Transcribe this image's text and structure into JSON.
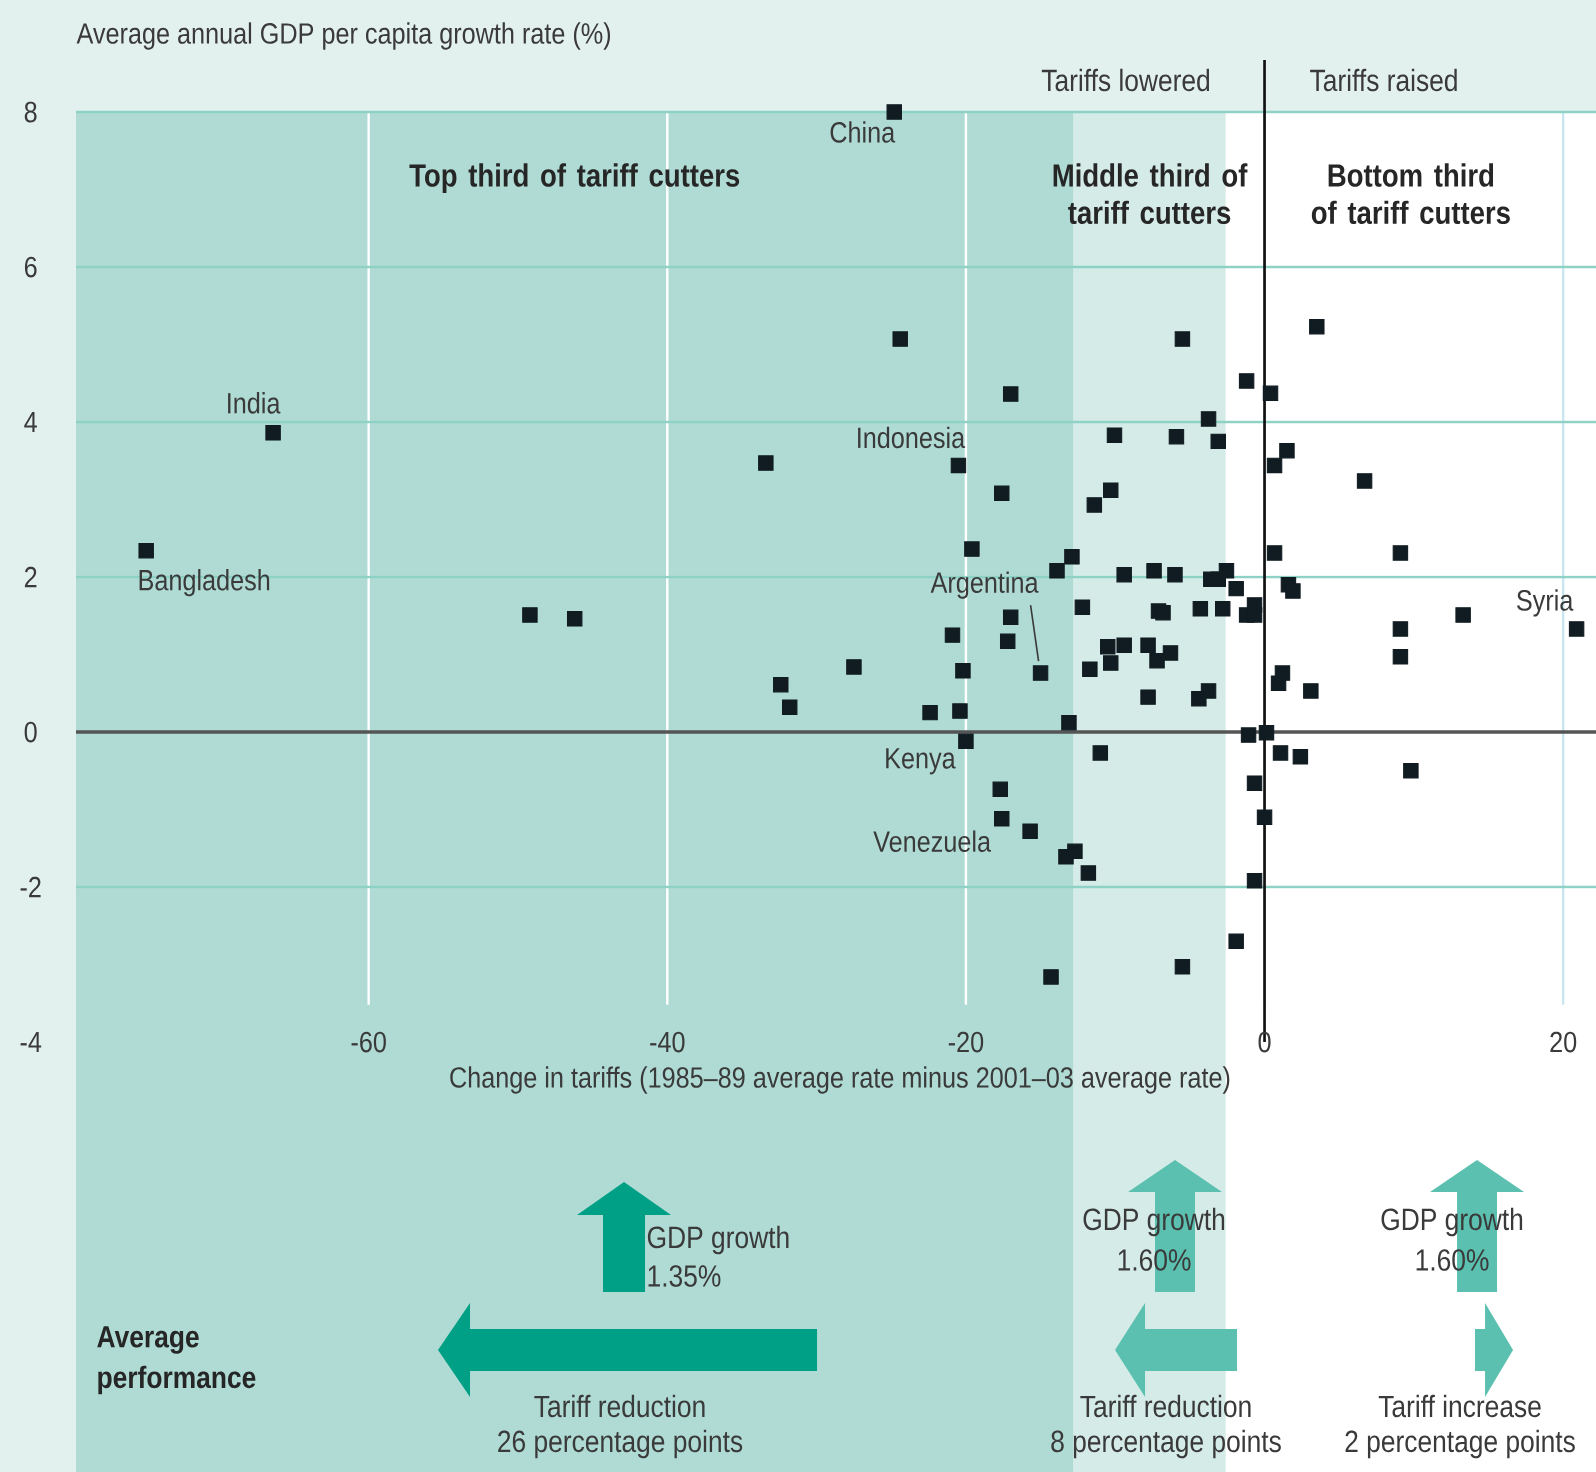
{
  "chart_data": {
    "type": "scatter",
    "xlabel": "Change in tariffs (1985–89 average rate minus 2001–03 average rate)",
    "ylabel": "Average annual GDP per capita growth rate (%)",
    "xlim": [
      -79.6,
      22.2
    ],
    "ylim": [
      -4,
      8
    ],
    "xticks": [
      -60,
      -40,
      -20,
      0,
      20
    ],
    "yticks": [
      -4,
      -2,
      0,
      2,
      4,
      6,
      8
    ],
    "grid": true,
    "marker": "square",
    "color": "#111c22",
    "x": [
      -66.4,
      -74.9,
      -33.4,
      -49.2,
      -46.2,
      -32.4,
      -31.8,
      -24.8,
      -24.4,
      -5.5,
      3.5,
      -17.0,
      -1.2,
      0.4,
      -3.75,
      -10.05,
      -5.9,
      -3.1,
      1.5,
      0.67,
      -20.5,
      6.7,
      -17.6,
      -10.3,
      -11.4,
      -19.6,
      0.67,
      9.1,
      -12.9,
      -13.9,
      -9.4,
      -7.4,
      -6.0,
      -3.6,
      -3.1,
      -2.55,
      -1.9,
      1.6,
      1.9,
      -17.0,
      -12.2,
      -7.1,
      -6.8,
      -4.3,
      -2.8,
      -1.2,
      -0.67,
      -0.67,
      13.3,
      20.9,
      9.1,
      9.1,
      -20.9,
      -17.2,
      -27.5,
      -20.2,
      -15.0,
      -11.7,
      -10.5,
      -10.3,
      -9.4,
      -7.8,
      -7.2,
      -6.3,
      1.2,
      0.94,
      3.1,
      -7.8,
      -4.4,
      -3.75,
      -22.4,
      -20.4,
      -13.1,
      -20.0,
      -1.07,
      0.13,
      -11.0,
      1.07,
      2.4,
      9.8,
      -0.67,
      -17.7,
      0.0,
      -17.6,
      -15.7,
      -12.7,
      -13.3,
      -11.8,
      -0.67,
      -1.9,
      -5.5,
      -14.3
    ],
    "values": [
      3.86,
      2.34,
      3.47,
      1.51,
      1.46,
      0.61,
      0.32,
      8.0,
      5.07,
      5.07,
      5.23,
      4.36,
      4.53,
      4.37,
      4.04,
      3.83,
      3.81,
      3.75,
      3.63,
      3.44,
      3.44,
      3.24,
      3.08,
      3.12,
      2.93,
      2.36,
      2.31,
      2.31,
      2.26,
      2.08,
      2.03,
      2.08,
      2.03,
      1.97,
      1.97,
      2.08,
      1.85,
      1.9,
      1.82,
      1.48,
      1.61,
      1.56,
      1.54,
      1.59,
      1.59,
      1.51,
      1.64,
      1.51,
      1.51,
      1.33,
      1.33,
      0.97,
      1.25,
      1.17,
      0.84,
      0.79,
      0.76,
      0.81,
      1.1,
      0.89,
      1.12,
      1.12,
      0.92,
      1.02,
      0.76,
      0.63,
      0.53,
      0.45,
      0.43,
      0.53,
      0.25,
      0.27,
      0.12,
      -0.12,
      -0.04,
      -0.01,
      -0.27,
      -0.27,
      -0.32,
      -0.5,
      -0.66,
      -0.74,
      -1.1,
      -1.12,
      -1.28,
      -1.54,
      -1.61,
      -1.82,
      -1.92,
      -2.7,
      -3.03,
      -3.16
    ],
    "bands": [
      {
        "axis": "x",
        "from": -79.6,
        "to": -12.8,
        "label": "Top third of tariff cutters",
        "color": "#afdbd4"
      },
      {
        "axis": "x",
        "from": -12.8,
        "to": -2.6,
        "label": "Middle third of tariff cutters",
        "color": "#d5ebe7"
      },
      {
        "axis": "x",
        "from": -2.6,
        "to": 22.2,
        "label": "Bottom third of tariff cutters",
        "color": "#ffffff"
      }
    ],
    "ref_lines": [
      {
        "axis": "x",
        "value": 0,
        "color": "#111111"
      },
      {
        "axis": "y",
        "value": 0,
        "color": "#555555"
      }
    ],
    "annotations": [
      {
        "text": "India",
        "x": -66.4,
        "y": 3.86
      },
      {
        "text": "Bangladesh",
        "x": -74.9,
        "y": 2.34
      },
      {
        "text": "China",
        "x": -24.8,
        "y": 8.0
      },
      {
        "text": "Indonesia",
        "x": -20.5,
        "y": 3.44
      },
      {
        "text": "Argentina",
        "x": -15.0,
        "y": 0.76
      },
      {
        "text": "Kenya",
        "x": -20.0,
        "y": -0.12
      },
      {
        "text": "Venezuela",
        "x": -15.7,
        "y": -1.28
      },
      {
        "text": "Syria",
        "x": 20.9,
        "y": 1.33
      },
      "Tariffs lowered",
      "Tariffs raised",
      "Average",
      "performance",
      "GDP growth",
      "1.35%",
      "Tariff reduction",
      "26 percentage points",
      "GDP growth",
      "1.60%",
      "Tariff reduction",
      "8 percentage points",
      "GDP growth",
      "1.60%",
      "Tariff increase",
      "2 percentage points"
    ]
  }
}
